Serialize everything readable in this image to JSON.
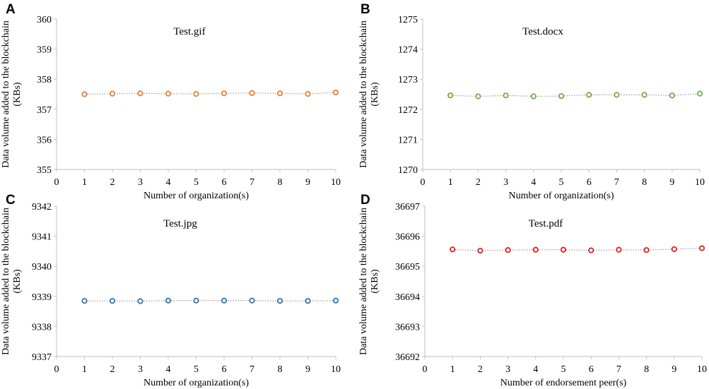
{
  "chart_data": [
    {
      "panel": "A",
      "type": "line",
      "title": "Test.gif",
      "xlabel": "Number of organization(s)",
      "ylabel": [
        "Data volume added to the blockchain",
        "(KBs)"
      ],
      "x": [
        1,
        2,
        3,
        4,
        5,
        6,
        7,
        8,
        9,
        10
      ],
      "values": [
        357.5,
        357.52,
        357.53,
        357.52,
        357.51,
        357.53,
        357.54,
        357.53,
        357.51,
        357.56
      ],
      "xlim": [
        0,
        10
      ],
      "ylim": [
        355,
        360
      ],
      "yticks": [
        355,
        356,
        357,
        358,
        359,
        360
      ],
      "color": "#ED7D31"
    },
    {
      "panel": "B",
      "type": "line",
      "title": "Test.docx",
      "xlabel": "Number of organization(s)",
      "ylabel": [
        "Data volume added to the blockchain",
        "(KBs)"
      ],
      "x": [
        1,
        2,
        3,
        4,
        5,
        6,
        7,
        8,
        9,
        10
      ],
      "values": [
        1272.46,
        1272.43,
        1272.46,
        1272.43,
        1272.44,
        1272.48,
        1272.48,
        1272.48,
        1272.46,
        1272.52
      ],
      "xlim": [
        0,
        10
      ],
      "ylim": [
        1270,
        1275
      ],
      "yticks": [
        1270,
        1271,
        1272,
        1273,
        1274,
        1275
      ],
      "color": "#70AD47"
    },
    {
      "panel": "C",
      "type": "line",
      "title": "Test.jpg",
      "xlabel": "Number of organization(s)",
      "ylabel": [
        "Data volume added to the blockchain",
        "(KBs)"
      ],
      "x": [
        1,
        2,
        3,
        4,
        5,
        6,
        7,
        8,
        9,
        10
      ],
      "values": [
        9338.85,
        9338.85,
        9338.84,
        9338.86,
        9338.86,
        9338.86,
        9338.86,
        9338.85,
        9338.85,
        9338.86
      ],
      "xlim": [
        0,
        10
      ],
      "ylim": [
        9337,
        9342
      ],
      "yticks": [
        9337,
        9338,
        9339,
        9340,
        9341,
        9342
      ],
      "color": "#2E75B6"
    },
    {
      "panel": "D",
      "type": "line",
      "title": "Test.pdf",
      "xlabel": "Number of endorsement peer(s)",
      "ylabel": [
        "Data volume added to the blockchain",
        "(KBs)"
      ],
      "x": [
        1,
        2,
        3,
        4,
        5,
        6,
        7,
        8,
        9,
        10
      ],
      "values": [
        36695.56,
        36695.52,
        36695.54,
        36695.55,
        36695.55,
        36695.53,
        36695.55,
        36695.54,
        36695.57,
        36695.6
      ],
      "xlim": [
        0,
        10
      ],
      "ylim": [
        36692,
        36697
      ],
      "yticks": [
        36692,
        36693,
        36694,
        36695,
        36696,
        36697
      ],
      "color": "#E02020"
    }
  ]
}
